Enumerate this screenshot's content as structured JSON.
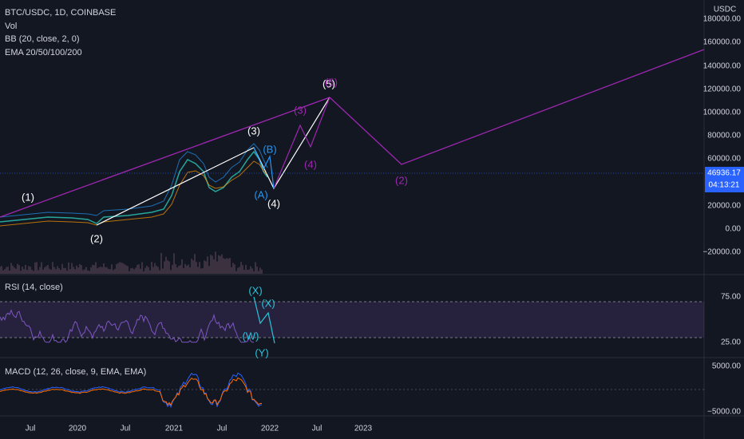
{
  "header": {
    "symbol": "BTC/USDC, 1D, COINBASE",
    "indicators": [
      "Vol",
      "BB (20, close, 2, 0)",
      "EMA 20/50/100/200"
    ]
  },
  "price_axis": {
    "unit": "USDC",
    "labels": [
      "180000.00",
      "160000.00",
      "140000.00",
      "120000.00",
      "100000.00",
      "80000.00",
      "60000.00",
      "20000.00",
      "0.00",
      "−20000.00"
    ],
    "current_price": "46936.17",
    "countdown": "04:13:21"
  },
  "waves": {
    "main": [
      "(1)",
      "(2)",
      "(3)",
      "(4)",
      "(5)"
    ],
    "corrective": [
      "(A)",
      "(B)"
    ],
    "projection": [
      "(3)",
      "(4)",
      "(5)",
      "(2)"
    ]
  },
  "rsi": {
    "title": "RSI (14, close)",
    "labels": [
      "75.00",
      "25.00"
    ],
    "waves": [
      "(X)",
      "(X)",
      "(W)",
      "(Y)"
    ]
  },
  "macd": {
    "title": "MACD (12, 26, close, 9, EMA, EMA)",
    "labels": [
      "5000.00",
      "−5000.00"
    ]
  },
  "time_axis": [
    "Jul",
    "2020",
    "Jul",
    "2021",
    "Jul",
    "2022",
    "Jul",
    "2023"
  ]
}
